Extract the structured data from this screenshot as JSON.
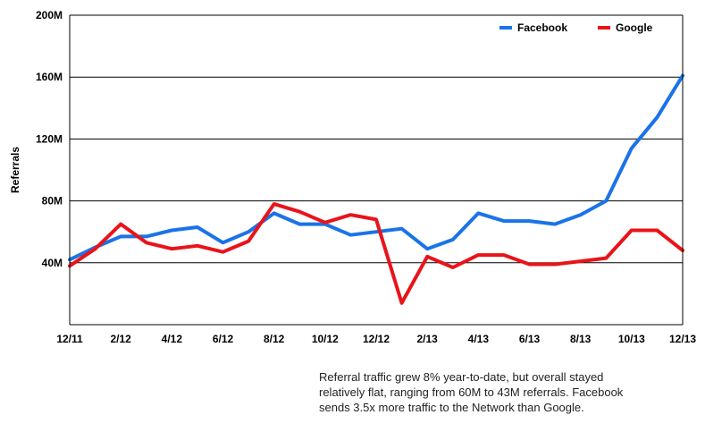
{
  "chart_data": {
    "type": "line",
    "ylabel": "Referrals",
    "ylim": [
      0,
      200
    ],
    "yticks": [
      {
        "value": 40,
        "label": "40M"
      },
      {
        "value": 80,
        "label": "80M"
      },
      {
        "value": 120,
        "label": "120M"
      },
      {
        "value": 160,
        "label": "160M"
      },
      {
        "value": 200,
        "label": "200M"
      }
    ],
    "xtick_labels": [
      "12/11",
      "2/12",
      "4/12",
      "6/12",
      "8/12",
      "10/12",
      "12/12",
      "2/13",
      "4/13",
      "6/13",
      "8/13",
      "10/13",
      "12/13"
    ],
    "categories": [
      "12/11",
      "1/12",
      "2/12",
      "3/12",
      "4/12",
      "5/12",
      "6/12",
      "7/12",
      "8/12",
      "9/12",
      "10/12",
      "11/12",
      "12/12",
      "1/13",
      "2/13",
      "3/13",
      "4/13",
      "5/13",
      "6/13",
      "7/13",
      "8/13",
      "9/13",
      "10/13",
      "11/13",
      "12/13"
    ],
    "grid": "horizontal",
    "legend_position": "top-right",
    "series": [
      {
        "name": "Facebook",
        "color": "#1a73e8",
        "values": [
          42,
          50,
          57,
          57,
          61,
          63,
          53,
          60,
          72,
          65,
          65,
          58,
          60,
          62,
          49,
          55,
          72,
          67,
          67,
          65,
          71,
          80,
          114,
          134,
          161
        ]
      },
      {
        "name": "Google",
        "color": "#e8141a",
        "values": [
          38,
          49,
          65,
          53,
          49,
          51,
          47,
          54,
          78,
          73,
          66,
          71,
          68,
          14,
          44,
          37,
          45,
          45,
          39,
          39,
          41,
          43,
          61,
          61,
          48
        ]
      }
    ]
  },
  "caption": {
    "lines": [
      "Referral traffic grew 8% year-to-date, but overall stayed",
      "relatively flat, ranging from 60M to 43M referrals.  Facebook",
      "sends 3.5x more traffic to the Network than Google."
    ]
  }
}
